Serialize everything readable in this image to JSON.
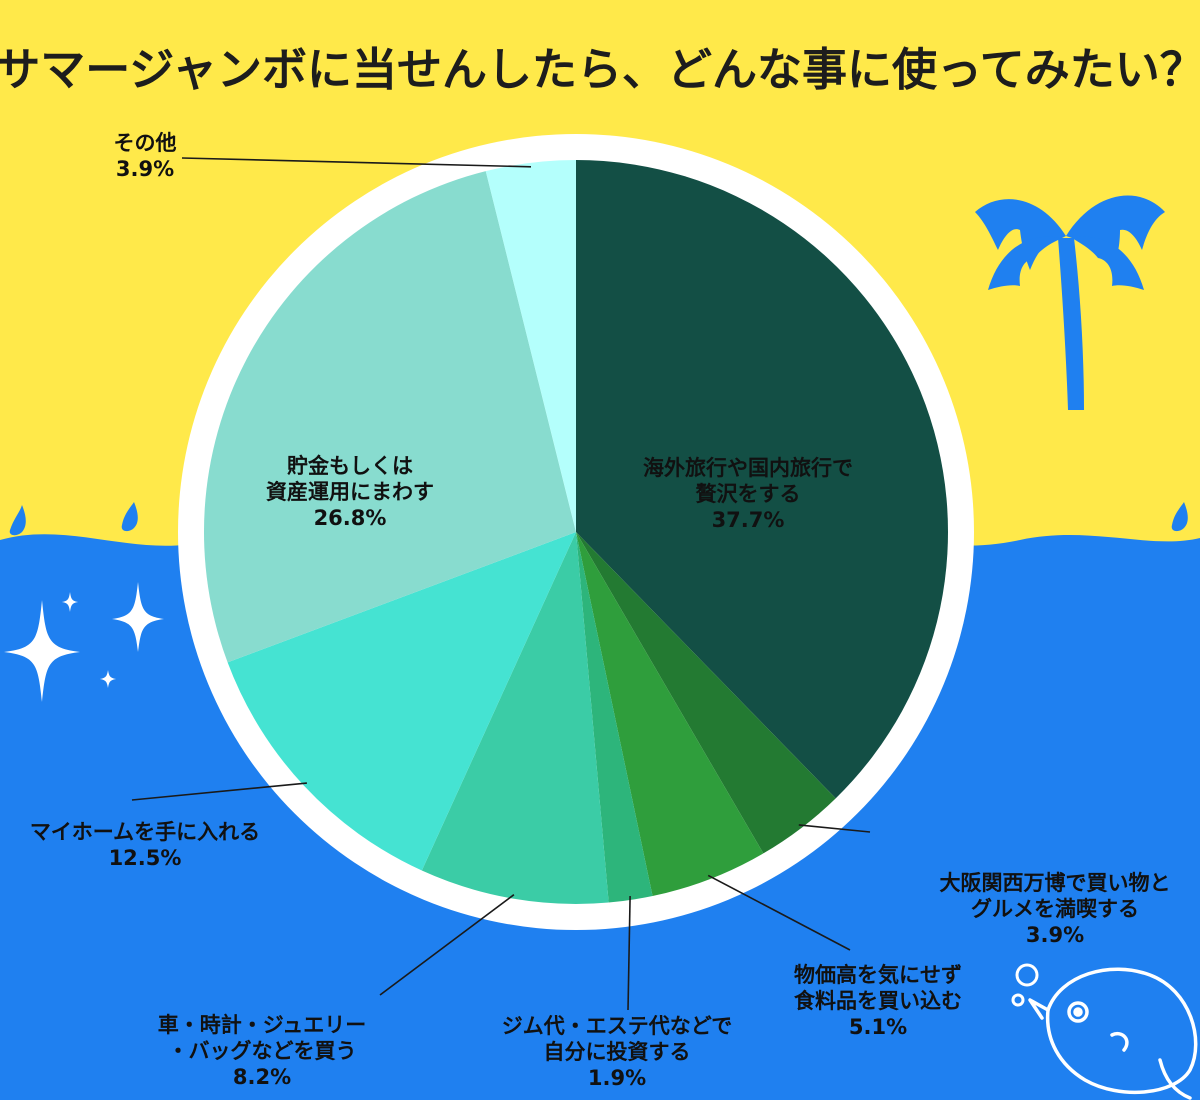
{
  "colors": {
    "sky": "#ffe94a",
    "sea": "#1f80f0",
    "ring": "#ffffff",
    "palm": "#1f80f0",
    "sparkle": "#ffffff",
    "leader": "#1a1a1a"
  },
  "decor": {
    "icons": [
      "palm-tree-icon",
      "sparkle-icon",
      "fish-icon",
      "bubble-icon",
      "water-drop-icon"
    ]
  },
  "chart_data": {
    "type": "pie",
    "title": "サマージャンボに当せんしたら、どんな事に使ってみたい？",
    "start_angle_deg": 0,
    "direction": "clockwise",
    "slices": [
      {
        "lines": [
          "海外旅行や国内旅行で",
          "贅沢をする"
        ],
        "pct_label": "37.7%",
        "value": 37.7,
        "color": "#134f45",
        "text_color": "#ffffff"
      },
      {
        "lines": [
          "大阪関西万博で買い物と",
          "グルメを満喫する"
        ],
        "pct_label": "3.9%",
        "value": 3.9,
        "color": "#237a32",
        "text_color": "#111111"
      },
      {
        "lines": [
          "物価高を気にせず",
          "食料品を買い込む"
        ],
        "pct_label": "5.1%",
        "value": 5.1,
        "color": "#2f9e3c",
        "text_color": "#111111"
      },
      {
        "lines": [
          "ジム代・エステ代などで",
          "自分に投資する"
        ],
        "pct_label": "1.9%",
        "value": 1.9,
        "color": "#2db57b",
        "text_color": "#111111"
      },
      {
        "lines": [
          "車・時計・ジュエリー",
          "・バッグなどを買う"
        ],
        "pct_label": "8.2%",
        "value": 8.2,
        "color": "#3bcca6",
        "text_color": "#111111"
      },
      {
        "lines": [
          "マイホームを手に入れる"
        ],
        "pct_label": "12.5%",
        "value": 12.5,
        "color": "#45e3d2",
        "text_color": "#111111"
      },
      {
        "lines": [
          "貯金もしくは",
          "資産運用にまわす"
        ],
        "pct_label": "26.8%",
        "value": 26.8,
        "color": "#88dccf",
        "text_color": "#111111"
      },
      {
        "lines": [
          "その他"
        ],
        "pct_label": "3.9%",
        "value": 3.9,
        "color": "#b4fffc",
        "text_color": "#111111"
      }
    ]
  }
}
